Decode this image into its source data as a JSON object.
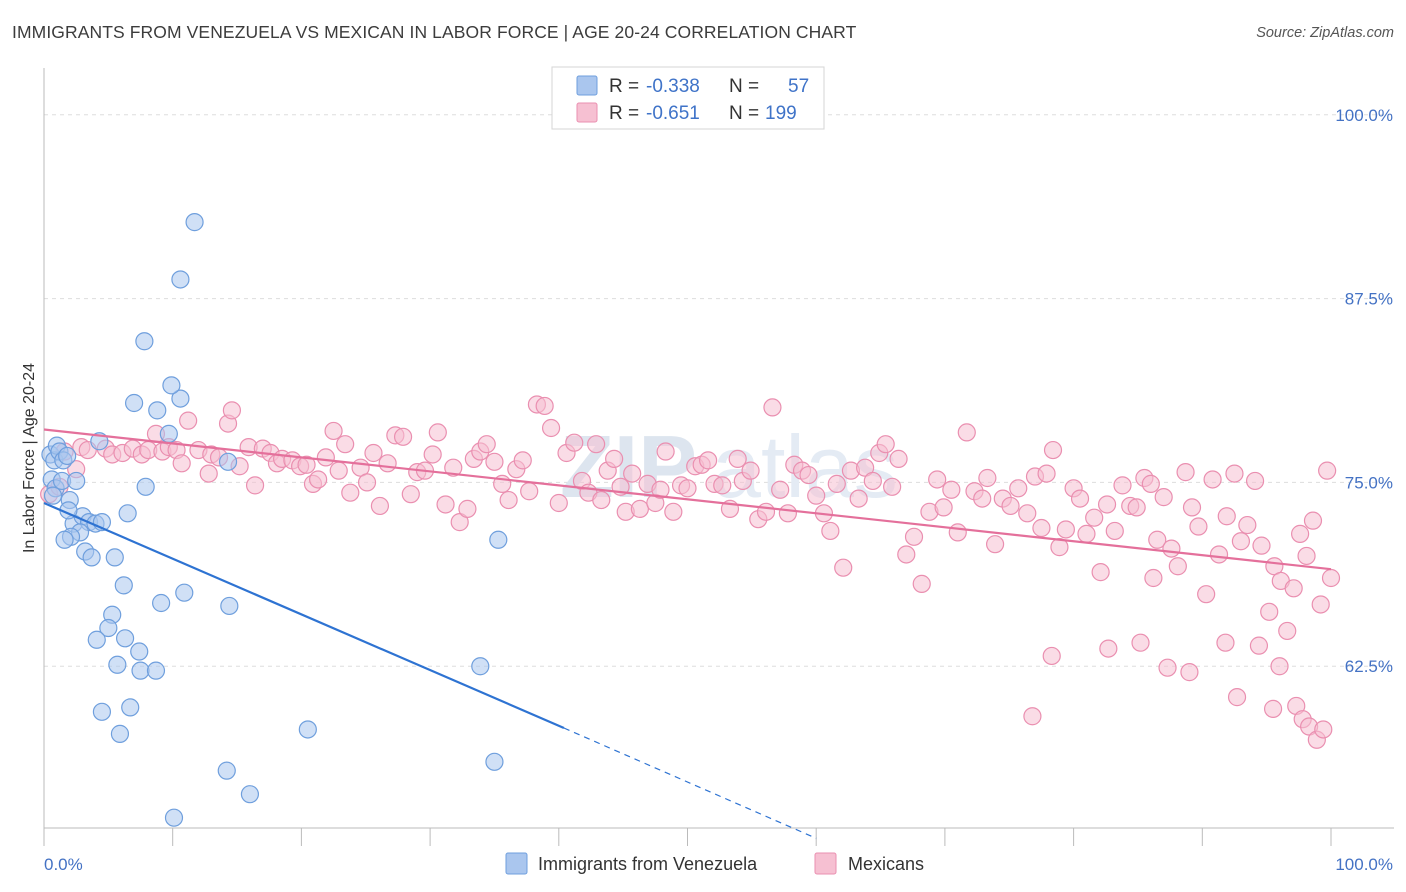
{
  "title": "IMMIGRANTS FROM VENEZUELA VS MEXICAN IN LABOR FORCE | AGE 20-24 CORRELATION CHART",
  "source": "Source: ZipAtlas.com",
  "watermark": {
    "zip": "ZIP",
    "atlas": "atlas"
  },
  "stats": {
    "r_label": "R =",
    "n_label": "N =",
    "venezuela": {
      "r": "-0.338",
      "n": "57"
    },
    "mexicans": {
      "r": "-0.651",
      "n": "199"
    }
  },
  "colors": {
    "venezuela_fill": "#aac6ee",
    "venezuela_stroke": "#6f9fdd",
    "venezuela_line": "#2e73d2",
    "mexicans_fill": "#f6c0d2",
    "mexicans_stroke": "#ea8fb0",
    "mexicans_line": "#e4709b",
    "tick_text": "#4472c4",
    "grid": "#dddddd"
  },
  "chart_data": {
    "type": "scatter",
    "xlabel": "",
    "ylabel": "In Labor Force | Age 20-24",
    "xlim": [
      0,
      100
    ],
    "ylim": [
      51.5,
      102.5
    ],
    "x_tick_labels": [
      {
        "value": 0,
        "label": "0.0%"
      },
      {
        "value": 100,
        "label": "100.0%"
      }
    ],
    "y_ticks": [
      {
        "value": 100,
        "label": "100.0%"
      },
      {
        "value": 87.5,
        "label": "87.5%"
      },
      {
        "value": 75,
        "label": "75.0%"
      },
      {
        "value": 62.5,
        "label": "62.5%"
      }
    ],
    "grid": true,
    "legend_position": "bottom-center",
    "series": [
      {
        "name": "Immigrants from Venezuela",
        "points": [
          [
            0.5,
            76.9
          ],
          [
            0.8,
            76.5
          ],
          [
            1.0,
            77.5
          ],
          [
            1.2,
            77.1
          ],
          [
            1.5,
            76.5
          ],
          [
            1.8,
            76.8
          ],
          [
            0.6,
            75.2
          ],
          [
            0.9,
            74.6
          ],
          [
            0.7,
            74.1
          ],
          [
            1.4,
            75.1
          ],
          [
            2.5,
            75.1
          ],
          [
            2.0,
            73.8
          ],
          [
            2.3,
            72.2
          ],
          [
            3.0,
            72.7
          ],
          [
            3.5,
            72.3
          ],
          [
            4.0,
            72.2
          ],
          [
            2.8,
            71.6
          ],
          [
            2.1,
            71.3
          ],
          [
            1.9,
            73.1
          ],
          [
            1.6,
            71.1
          ],
          [
            3.2,
            70.3
          ],
          [
            3.7,
            69.9
          ],
          [
            5.5,
            69.9
          ],
          [
            6.2,
            68.0
          ],
          [
            4.3,
            77.8
          ],
          [
            4.5,
            72.3
          ],
          [
            6.5,
            72.9
          ],
          [
            7.9,
            74.7
          ],
          [
            5.3,
            66.0
          ],
          [
            5.0,
            65.1
          ],
          [
            6.3,
            64.4
          ],
          [
            7.4,
            63.5
          ],
          [
            4.1,
            64.3
          ],
          [
            5.7,
            62.6
          ],
          [
            7.5,
            62.2
          ],
          [
            8.7,
            62.2
          ],
          [
            9.1,
            66.8
          ],
          [
            10.9,
            67.5
          ],
          [
            14.4,
            66.6
          ],
          [
            4.5,
            59.4
          ],
          [
            6.7,
            59.7
          ],
          [
            5.9,
            57.9
          ],
          [
            14.2,
            55.4
          ],
          [
            16.0,
            53.8
          ],
          [
            10.1,
            52.2
          ],
          [
            20.5,
            58.2
          ],
          [
            35.3,
            71.1
          ],
          [
            33.9,
            62.5
          ],
          [
            35.0,
            56.0
          ],
          [
            7.0,
            80.4
          ],
          [
            8.8,
            79.9
          ],
          [
            10.6,
            80.7
          ],
          [
            9.7,
            78.3
          ],
          [
            14.3,
            76.4
          ],
          [
            7.8,
            84.6
          ],
          [
            9.9,
            81.6
          ],
          [
            10.6,
            88.8
          ],
          [
            11.7,
            92.7
          ]
        ]
      },
      {
        "name": "Mexicans",
        "points": [
          [
            0.4,
            74.2
          ],
          [
            1.2,
            74.7
          ],
          [
            1.6,
            77.1
          ],
          [
            2.5,
            75.9
          ],
          [
            2.9,
            77.4
          ],
          [
            3.4,
            77.2
          ],
          [
            4.8,
            77.3
          ],
          [
            5.3,
            76.9
          ],
          [
            6.1,
            77.0
          ],
          [
            6.9,
            77.3
          ],
          [
            7.6,
            76.9
          ],
          [
            8.1,
            77.2
          ],
          [
            8.7,
            78.3
          ],
          [
            9.2,
            77.1
          ],
          [
            9.7,
            77.4
          ],
          [
            10.3,
            77.2
          ],
          [
            10.7,
            76.3
          ],
          [
            11.2,
            79.2
          ],
          [
            12.0,
            77.2
          ],
          [
            12.8,
            75.6
          ],
          [
            13.0,
            76.9
          ],
          [
            13.6,
            76.7
          ],
          [
            14.3,
            79.0
          ],
          [
            14.6,
            79.9
          ],
          [
            15.2,
            76.1
          ],
          [
            15.9,
            77.4
          ],
          [
            16.4,
            74.8
          ],
          [
            17.0,
            77.3
          ],
          [
            17.6,
            77.0
          ],
          [
            18.1,
            76.3
          ],
          [
            18.5,
            76.6
          ],
          [
            19.3,
            76.5
          ],
          [
            19.9,
            76.1
          ],
          [
            20.4,
            76.2
          ],
          [
            20.9,
            74.9
          ],
          [
            21.3,
            75.2
          ],
          [
            21.9,
            76.7
          ],
          [
            22.5,
            78.5
          ],
          [
            22.9,
            75.8
          ],
          [
            23.4,
            77.6
          ],
          [
            23.8,
            74.3
          ],
          [
            24.6,
            76.0
          ],
          [
            25.1,
            75.0
          ],
          [
            25.6,
            77.0
          ],
          [
            26.1,
            73.4
          ],
          [
            26.7,
            76.3
          ],
          [
            27.3,
            78.2
          ],
          [
            27.9,
            78.1
          ],
          [
            28.5,
            74.2
          ],
          [
            29.0,
            75.7
          ],
          [
            29.6,
            75.8
          ],
          [
            30.2,
            76.9
          ],
          [
            30.6,
            78.4
          ],
          [
            31.2,
            73.5
          ],
          [
            31.8,
            76.0
          ],
          [
            32.3,
            72.3
          ],
          [
            32.9,
            73.2
          ],
          [
            33.4,
            76.6
          ],
          [
            33.9,
            77.1
          ],
          [
            34.4,
            77.6
          ],
          [
            35.0,
            76.4
          ],
          [
            35.6,
            74.9
          ],
          [
            36.1,
            73.8
          ],
          [
            36.7,
            75.9
          ],
          [
            37.2,
            76.5
          ],
          [
            37.7,
            74.4
          ],
          [
            38.3,
            80.3
          ],
          [
            38.9,
            80.2
          ],
          [
            39.4,
            78.7
          ],
          [
            40.0,
            73.6
          ],
          [
            40.6,
            77.0
          ],
          [
            41.2,
            77.7
          ],
          [
            41.8,
            75.1
          ],
          [
            42.3,
            74.3
          ],
          [
            42.9,
            77.6
          ],
          [
            43.3,
            73.8
          ],
          [
            43.8,
            75.8
          ],
          [
            44.3,
            76.6
          ],
          [
            44.8,
            74.7
          ],
          [
            45.2,
            73.0
          ],
          [
            45.7,
            75.6
          ],
          [
            46.3,
            73.2
          ],
          [
            46.9,
            74.9
          ],
          [
            47.5,
            73.6
          ],
          [
            47.9,
            74.5
          ],
          [
            48.3,
            77.1
          ],
          [
            48.9,
            73.0
          ],
          [
            49.5,
            74.8
          ],
          [
            50.0,
            74.6
          ],
          [
            50.6,
            76.1
          ],
          [
            51.1,
            76.2
          ],
          [
            51.6,
            76.5
          ],
          [
            52.1,
            74.9
          ],
          [
            52.7,
            74.8
          ],
          [
            53.3,
            73.2
          ],
          [
            53.9,
            76.6
          ],
          [
            54.3,
            75.1
          ],
          [
            54.9,
            75.8
          ],
          [
            55.5,
            72.5
          ],
          [
            56.1,
            73.0
          ],
          [
            56.6,
            80.1
          ],
          [
            57.2,
            74.5
          ],
          [
            57.8,
            72.9
          ],
          [
            58.3,
            76.2
          ],
          [
            58.9,
            75.8
          ],
          [
            59.4,
            75.5
          ],
          [
            60.0,
            74.1
          ],
          [
            60.6,
            72.9
          ],
          [
            61.1,
            71.7
          ],
          [
            61.6,
            74.9
          ],
          [
            62.1,
            69.2
          ],
          [
            62.7,
            75.8
          ],
          [
            63.3,
            73.9
          ],
          [
            63.8,
            76.0
          ],
          [
            64.4,
            75.1
          ],
          [
            64.9,
            77.0
          ],
          [
            65.4,
            77.6
          ],
          [
            65.9,
            74.7
          ],
          [
            66.4,
            76.6
          ],
          [
            67.0,
            70.1
          ],
          [
            67.6,
            71.3
          ],
          [
            68.2,
            68.1
          ],
          [
            68.8,
            73.0
          ],
          [
            69.4,
            75.2
          ],
          [
            69.9,
            73.3
          ],
          [
            70.5,
            74.5
          ],
          [
            71.0,
            71.6
          ],
          [
            71.7,
            78.4
          ],
          [
            72.3,
            74.4
          ],
          [
            72.9,
            73.9
          ],
          [
            73.3,
            75.3
          ],
          [
            73.9,
            70.8
          ],
          [
            74.5,
            73.9
          ],
          [
            75.1,
            73.4
          ],
          [
            75.7,
            74.6
          ],
          [
            76.4,
            72.9
          ],
          [
            77.0,
            75.4
          ],
          [
            77.5,
            71.9
          ],
          [
            77.9,
            75.6
          ],
          [
            78.4,
            77.2
          ],
          [
            78.9,
            70.6
          ],
          [
            79.4,
            71.8
          ],
          [
            80.0,
            74.6
          ],
          [
            80.5,
            73.9
          ],
          [
            81.0,
            71.5
          ],
          [
            81.6,
            72.6
          ],
          [
            82.1,
            68.9
          ],
          [
            82.6,
            73.5
          ],
          [
            83.2,
            71.7
          ],
          [
            83.8,
            74.8
          ],
          [
            84.4,
            73.4
          ],
          [
            84.9,
            73.3
          ],
          [
            85.5,
            75.3
          ],
          [
            86.0,
            74.9
          ],
          [
            86.5,
            71.1
          ],
          [
            87.0,
            74.0
          ],
          [
            87.6,
            70.5
          ],
          [
            88.1,
            69.3
          ],
          [
            88.7,
            75.7
          ],
          [
            89.2,
            73.3
          ],
          [
            89.7,
            72.0
          ],
          [
            90.3,
            67.4
          ],
          [
            90.8,
            75.2
          ],
          [
            91.3,
            70.1
          ],
          [
            91.9,
            72.7
          ],
          [
            92.5,
            75.6
          ],
          [
            93.0,
            71.0
          ],
          [
            93.5,
            72.1
          ],
          [
            94.1,
            75.1
          ],
          [
            94.6,
            70.7
          ],
          [
            95.2,
            66.2
          ],
          [
            95.6,
            69.3
          ],
          [
            96.1,
            68.3
          ],
          [
            96.6,
            64.9
          ],
          [
            97.1,
            67.8
          ],
          [
            97.6,
            71.5
          ],
          [
            98.1,
            70.0
          ],
          [
            98.6,
            72.4
          ],
          [
            99.2,
            66.7
          ],
          [
            99.7,
            75.8
          ],
          [
            100.0,
            68.5
          ],
          [
            78.3,
            63.2
          ],
          [
            82.7,
            63.7
          ],
          [
            85.2,
            64.1
          ],
          [
            86.2,
            68.5
          ],
          [
            87.3,
            62.4
          ],
          [
            89.0,
            62.1
          ],
          [
            91.8,
            64.1
          ],
          [
            94.4,
            63.9
          ],
          [
            96.0,
            62.5
          ],
          [
            92.7,
            60.4
          ],
          [
            95.5,
            59.6
          ],
          [
            97.3,
            59.8
          ],
          [
            97.8,
            58.9
          ],
          [
            98.3,
            58.4
          ],
          [
            98.9,
            57.5
          ],
          [
            99.4,
            58.2
          ],
          [
            76.8,
            59.1
          ]
        ]
      }
    ],
    "trend_lines": [
      {
        "name": "Immigrants from Venezuela",
        "x": [
          0,
          40.4
        ],
        "y": [
          73.6,
          58.3
        ],
        "dashed_extension_to": [
          60,
          50.8
        ]
      },
      {
        "name": "Mexicans",
        "x": [
          0,
          100
        ],
        "y": [
          78.6,
          69.1
        ]
      }
    ]
  }
}
